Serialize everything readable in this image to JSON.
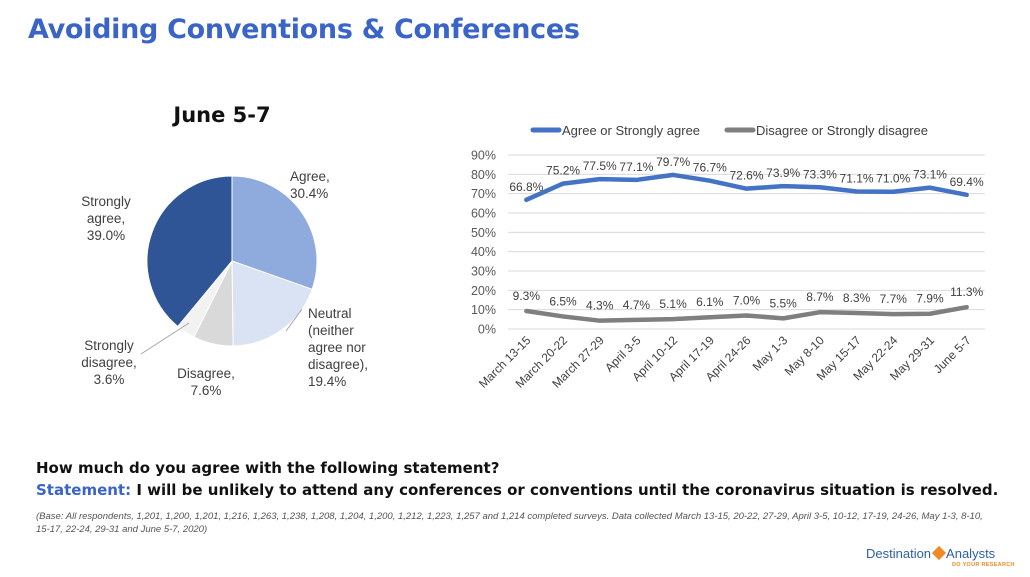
{
  "page": {
    "title": "Avoiding Conventions & Conferences",
    "question": "How much do you agree with the following statement?",
    "statement_label": "Statement:",
    "statement_text": "I will be unlikely to attend any conferences or conventions until the coronavirus situation is resolved.",
    "base_note": "(Base: All respondents, 1,201, 1,200, 1,201, 1,216, 1,263, 1,238, 1,208, 1,204, 1,200, 1,212, 1,223, 1,257 and 1,214 completed surveys. Data collected March 13-15, 20-22, 27-29, April 3-5, 10-12, 17-19, 24-26, May 1-3, 8-10, 15-17, 22-24, 29-31 and June 5-7, 2020)",
    "logo_text_left": "Destination",
    "logo_text_right": "Analysts",
    "logo_tagline": "DO YOUR RESEARCH",
    "logo_icon": "diamond-icon",
    "brand_color": "#3a64c8"
  },
  "chart_data": [
    {
      "type": "pie",
      "title": "June 5-7",
      "slices": [
        {
          "label": "Agree,",
          "value_label": "30.4%",
          "value": 30.4,
          "color": "#8faadc"
        },
        {
          "label": "Neutral (neither agree nor disagree),",
          "value_label": "19.4%",
          "value": 19.4,
          "color": "#dae3f3"
        },
        {
          "label": "Disagree,",
          "value_label": "7.6%",
          "value": 7.6,
          "color": "#d9d9d9"
        },
        {
          "label": "Strongly disagree,",
          "value_label": "3.6%",
          "value": 3.6,
          "color": "#f2f2f2"
        },
        {
          "label": "Strongly agree,",
          "value_label": "39.0%",
          "value": 39.0,
          "color": "#2f5597"
        }
      ],
      "label_lines": [
        [
          "Agree,",
          "30.4%"
        ],
        [
          "Neutral",
          "(neither",
          "agree nor",
          "disagree),",
          "19.4%"
        ],
        [
          "Disagree,",
          "7.6%"
        ],
        [
          "Strongly",
          "disagree,",
          "3.6%"
        ],
        [
          "Strongly",
          "agree,",
          "39.0%"
        ]
      ]
    },
    {
      "type": "line",
      "categories": [
        "March 13-15",
        "March 20-22",
        "March 27-29",
        "April 3-5",
        "April 10-12",
        "April 17-19",
        "April 24-26",
        "May 1-3",
        "May 8-10",
        "May 15-17",
        "May 22-24",
        "May 29-31",
        "June 5-7"
      ],
      "series": [
        {
          "name": "Agree or Strongly agree",
          "color": "#4472c4",
          "values": [
            66.8,
            75.2,
            77.5,
            77.1,
            79.7,
            76.7,
            72.6,
            73.9,
            73.3,
            71.1,
            71.0,
            73.1,
            69.4
          ],
          "labels": [
            "66.8%",
            "75.2%",
            "77.5%",
            "77.1%",
            "79.7%",
            "76.7%",
            "72.6%",
            "73.9%",
            "73.3%",
            "71.1%",
            "71.0%",
            "73.1%",
            "69.4%"
          ]
        },
        {
          "name": "Disagree or Strongly disagree",
          "color": "#7f7f7f",
          "values": [
            9.3,
            6.5,
            4.3,
            4.7,
            5.1,
            6.1,
            7.0,
            5.5,
            8.7,
            8.3,
            7.7,
            7.9,
            11.3
          ],
          "labels": [
            "9.3%",
            "6.5%",
            "4.3%",
            "4.7%",
            "5.1%",
            "6.1%",
            "7.0%",
            "5.5%",
            "8.7%",
            "8.3%",
            "7.7%",
            "7.9%",
            "11.3%"
          ]
        }
      ],
      "ylim": [
        0,
        90
      ],
      "yticks": [
        "0%",
        "10%",
        "20%",
        "30%",
        "40%",
        "50%",
        "60%",
        "70%",
        "80%",
        "90%"
      ],
      "grid": true,
      "legend_position": "top"
    }
  ]
}
